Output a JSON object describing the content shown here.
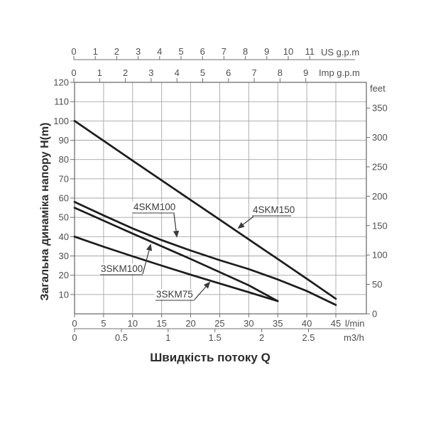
{
  "page": {
    "background": "#ffffff",
    "accent_color": "#1c1c1c",
    "grid_color": "#a6a6a6"
  },
  "chart_data": {
    "type": "line",
    "title": "",
    "xlabel": "Швидкість потоку Q",
    "ylabel": "Загальна динаміка напору H(m)",
    "grid": "on",
    "ylim_m": [
      0,
      120
    ],
    "xlim_lmin": [
      0,
      50
    ],
    "axes": {
      "us_gpm": {
        "unit": "US g.p.m",
        "ticks": [
          "0",
          "1",
          "2",
          "3",
          "4",
          "5",
          "6",
          "7",
          "8",
          "9",
          "10",
          "11"
        ]
      },
      "imp_gpm": {
        "unit": "Imp g.p.m",
        "ticks": [
          "0",
          "1",
          "2",
          "3",
          "4",
          "5",
          "6",
          "7",
          "8",
          "9"
        ]
      },
      "head_m": {
        "unit": "H(m)",
        "ticks": [
          "120",
          "110",
          "100",
          "90",
          "80",
          "70",
          "60",
          "50",
          "40",
          "30",
          "20",
          "10"
        ]
      },
      "feet": {
        "unit": "feet",
        "ticks": [
          "350",
          "300",
          "250",
          "200",
          "150",
          "100",
          "50",
          "0"
        ]
      },
      "lmin": {
        "unit": "l/min",
        "ticks": [
          "0",
          "5",
          "10",
          "15",
          "20",
          "25",
          "30",
          "35",
          "40",
          "45"
        ]
      },
      "m3h": {
        "unit": "m3/h",
        "ticks": [
          "0",
          "0.5",
          "1",
          "1.5",
          "2",
          "2.5"
        ]
      }
    },
    "series": [
      {
        "name": "4SKM150",
        "points": [
          [
            0,
            100
          ],
          [
            5,
            89.7
          ],
          [
            10,
            79.4
          ],
          [
            15,
            69.2
          ],
          [
            20,
            59
          ],
          [
            25,
            48.8
          ],
          [
            30,
            38.6
          ],
          [
            35,
            28.4
          ],
          [
            40,
            18.2
          ],
          [
            45,
            7.8
          ]
        ]
      },
      {
        "name": "4SKM100",
        "points": [
          [
            0,
            58
          ],
          [
            5,
            51
          ],
          [
            10,
            44.3
          ],
          [
            15,
            38.2
          ],
          [
            20,
            32.8
          ],
          [
            25,
            27.8
          ],
          [
            30,
            23.2
          ],
          [
            35,
            17.8
          ],
          [
            40,
            11.8
          ],
          [
            45,
            4.6
          ]
        ]
      },
      {
        "name": "3SKM100",
        "points": [
          [
            0,
            55
          ],
          [
            5,
            48.3
          ],
          [
            10,
            41.6
          ],
          [
            15,
            35
          ],
          [
            20,
            28.4
          ],
          [
            25,
            21.6
          ],
          [
            30,
            14.8
          ],
          [
            35,
            6.6
          ]
        ]
      },
      {
        "name": "3SKM75",
        "points": [
          [
            0,
            40
          ],
          [
            5,
            34.8
          ],
          [
            10,
            29.8
          ],
          [
            15,
            25
          ],
          [
            20,
            20.3
          ],
          [
            25,
            15.7
          ],
          [
            30,
            11.2
          ],
          [
            35,
            6.6
          ]
        ]
      }
    ]
  }
}
